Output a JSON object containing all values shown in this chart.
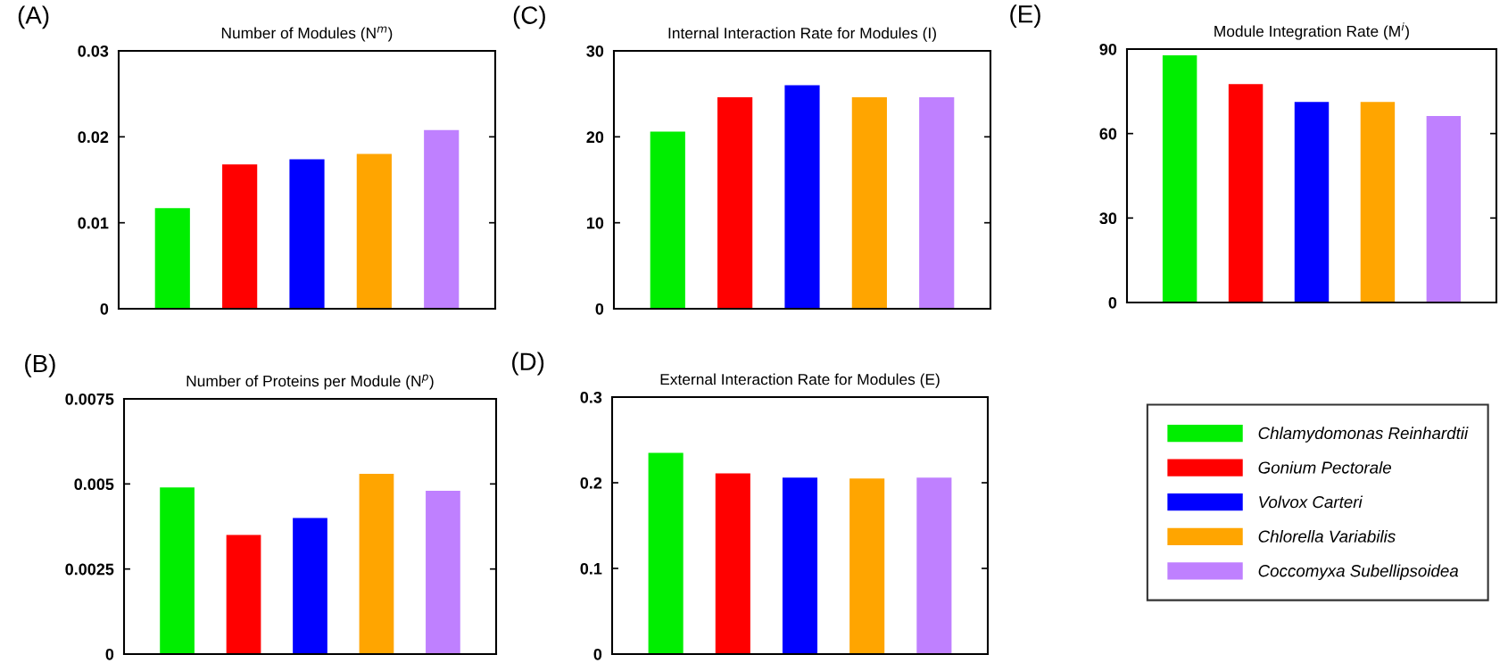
{
  "chart_data": [
    {
      "type": "bar",
      "title": "Number of Modules (N$^{m}$)",
      "annotations": [
        "(A)"
      ],
      "categories": [
        null
      ],
      "ylim": [
        0,
        0.03
      ],
      "yticks": [
        0,
        0.01,
        0.02,
        0.03
      ],
      "legend": false,
      "series": [
        {
          "color": "#00ee00",
          "values": [
            0.0117
          ]
        },
        {
          "color": "#ff0000",
          "values": [
            0.0168
          ]
        },
        {
          "color": "#0000ff",
          "values": [
            0.0174
          ]
        },
        {
          "color": "#ffa500",
          "values": [
            0.018
          ]
        },
        {
          "color": "#bf80ff",
          "values": [
            0.0208
          ]
        }
      ]
    },
    {
      "type": "bar",
      "title": "Number of Proteins per Module (N$^{p}$)",
      "annotations": [
        "(B)"
      ],
      "categories": [
        null
      ],
      "ylim": [
        0,
        0.0075
      ],
      "yticks": [
        0,
        0.0025,
        0.005,
        0.0075
      ],
      "legend": false,
      "series": [
        {
          "color": "#00ee00",
          "values": [
            0.0049
          ]
        },
        {
          "color": "#ff0000",
          "values": [
            0.0035
          ]
        },
        {
          "color": "#0000ff",
          "values": [
            0.004
          ]
        },
        {
          "color": "#ffa500",
          "values": [
            0.0053
          ]
        },
        {
          "color": "#bf80ff",
          "values": [
            0.0048
          ]
        }
      ]
    },
    {
      "type": "bar",
      "title": "Internal Interaction Rate for Modules (I)",
      "annotations": [
        "(C)"
      ],
      "categories": [
        null
      ],
      "ylim": [
        0,
        30
      ],
      "yticks": [
        0,
        10,
        20,
        30
      ],
      "legend": false,
      "series": [
        {
          "color": "#00ee00",
          "values": [
            20.6
          ]
        },
        {
          "color": "#ff0000",
          "values": [
            24.6
          ]
        },
        {
          "color": "#0000ff",
          "values": [
            26.0
          ]
        },
        {
          "color": "#ffa500",
          "values": [
            24.6
          ]
        },
        {
          "color": "#bf80ff",
          "values": [
            24.6
          ]
        }
      ]
    },
    {
      "type": "bar",
      "title": "External Interaction Rate for Modules (E)",
      "annotations": [
        "(D)"
      ],
      "categories": [
        null
      ],
      "ylim": [
        0,
        0.3
      ],
      "yticks": [
        0,
        0.1,
        0.2,
        0.3
      ],
      "legend": false,
      "series": [
        {
          "color": "#00ee00",
          "values": [
            0.235
          ]
        },
        {
          "color": "#ff0000",
          "values": [
            0.211
          ]
        },
        {
          "color": "#0000ff",
          "values": [
            0.206
          ]
        },
        {
          "color": "#ffa500",
          "values": [
            0.205
          ]
        },
        {
          "color": "#bf80ff",
          "values": [
            0.206
          ]
        }
      ]
    },
    {
      "type": "bar",
      "title": "Module Integration Rate (M$^{i}$)",
      "annotations": [
        "(E)"
      ],
      "categories": [
        null
      ],
      "ylim": [
        0,
        90
      ],
      "yticks": [
        0,
        30,
        60,
        90
      ],
      "legend": "bottom",
      "series": [
        {
          "name": "Chlamydomonas Reinhardtii",
          "color": "#00ee00",
          "values": [
            87.8
          ]
        },
        {
          "name": "Gonium Pectorale",
          "color": "#ff0000",
          "values": [
            77.6
          ]
        },
        {
          "name": "Volvox Carteri",
          "color": "#0000ff",
          "values": [
            71.2
          ]
        },
        {
          "name": "Chlorella Variabilis",
          "color": "#ffa500",
          "values": [
            71.2
          ]
        },
        {
          "name": "Coccomyxa Subellipsoidea",
          "color": "#bf80ff",
          "values": [
            66.2
          ]
        }
      ]
    }
  ]
}
